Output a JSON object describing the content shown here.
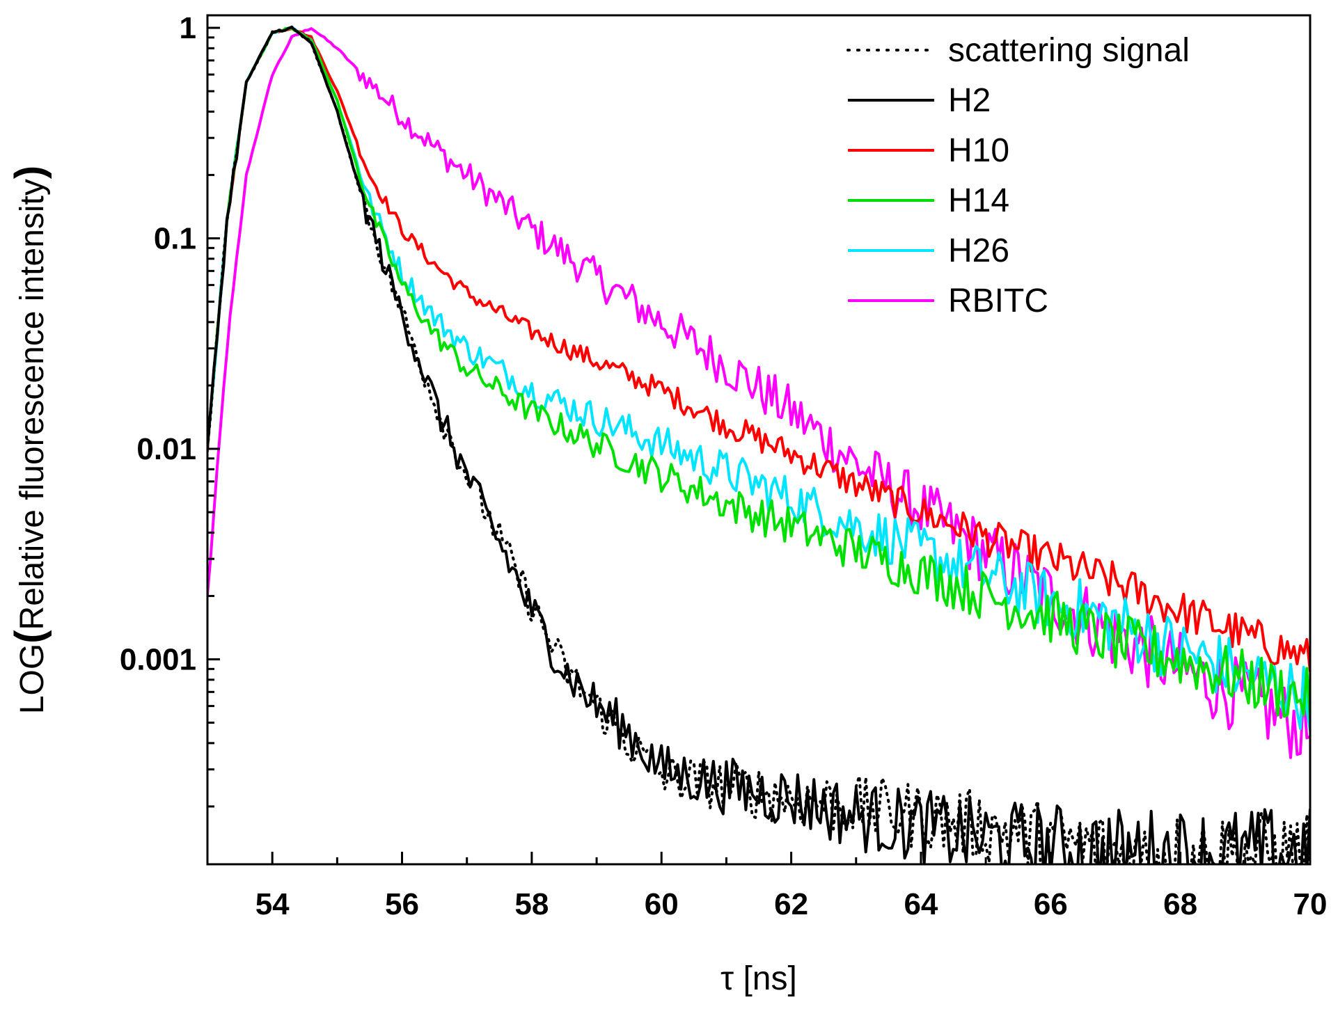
{
  "chart_data": {
    "type": "line",
    "title": "",
    "xlabel": "τ [ns]",
    "ylabel_prefix": "LOG",
    "ylabel_paren_open": "(",
    "ylabel_text": "Relative fluorescence intensity",
    "ylabel_paren_close": ")",
    "yscale": "log",
    "xlim": [
      53,
      70
    ],
    "ylim": [
      0.0001,
      1
    ],
    "xticks": [
      54,
      56,
      58,
      60,
      62,
      64,
      66,
      68,
      70
    ],
    "xtick_labels": [
      "54",
      "56",
      "58",
      "60",
      "62",
      "64",
      "66",
      "68",
      "70"
    ],
    "yticks": [
      1,
      0.1,
      0.01,
      0.001
    ],
    "ytick_labels": [
      "1",
      "0.1",
      "0.01",
      "0.001"
    ],
    "grid": false,
    "legend_position": "top-right",
    "series": [
      {
        "name": "scattering signal",
        "color": "#000000",
        "style": "dotted",
        "noise": 0.1,
        "x": [
          53,
          53.3,
          53.6,
          54.0,
          54.3,
          54.6,
          55.0,
          55.4,
          55.8,
          56.2,
          56.6,
          57.0,
          57.5,
          58.0,
          58.5,
          59.0,
          59.5,
          60.0,
          61.0,
          62.0,
          63.0,
          64.0,
          65.0,
          66.0,
          67.0,
          68.0,
          69.0,
          70.0
        ],
        "y": [
          0.01,
          0.12,
          0.55,
          0.95,
          1.0,
          0.85,
          0.4,
          0.15,
          0.065,
          0.03,
          0.014,
          0.0075,
          0.0038,
          0.0018,
          0.0009,
          0.0006,
          0.0004,
          0.00028,
          0.00025,
          0.00022,
          0.0002,
          0.00018,
          0.00016,
          0.00014,
          0.00012,
          0.00012,
          0.00012,
          0.00012
        ]
      },
      {
        "name": "H2",
        "color": "#000000",
        "style": "solid",
        "noise": 0.11,
        "x": [
          53,
          53.3,
          53.6,
          54.0,
          54.3,
          54.6,
          55.0,
          55.4,
          55.8,
          56.2,
          56.6,
          57.0,
          57.5,
          58.0,
          58.5,
          59.0,
          59.5,
          60.0,
          61.0,
          62.0,
          63.0,
          64.0,
          65.0,
          66.0,
          67.0,
          68.0,
          69.0,
          70.0
        ],
        "y": [
          0.01,
          0.12,
          0.55,
          0.95,
          1.0,
          0.85,
          0.4,
          0.15,
          0.065,
          0.03,
          0.014,
          0.0075,
          0.0036,
          0.0017,
          0.0009,
          0.0006,
          0.00045,
          0.0003,
          0.00025,
          0.00022,
          0.00018,
          0.00016,
          0.00014,
          0.00013,
          0.00012,
          0.00012,
          0.00012,
          0.00012
        ]
      },
      {
        "name": "H10",
        "color": "#ff0000",
        "style": "solid",
        "noise": 0.05,
        "x": [
          53,
          53.3,
          53.6,
          54.0,
          54.3,
          54.6,
          55.0,
          55.5,
          56.0,
          56.5,
          57.0,
          58.0,
          59.0,
          60.0,
          61.0,
          62.0,
          63.0,
          64.0,
          65.0,
          66.0,
          67.0,
          68.0,
          69.0,
          70.0
        ],
        "y": [
          0.01,
          0.12,
          0.55,
          0.95,
          1.0,
          0.9,
          0.5,
          0.2,
          0.11,
          0.075,
          0.055,
          0.036,
          0.026,
          0.019,
          0.013,
          0.0095,
          0.0068,
          0.005,
          0.0038,
          0.003,
          0.0023,
          0.0017,
          0.0013,
          0.001
        ]
      },
      {
        "name": "H14",
        "color": "#00e000",
        "style": "solid",
        "noise": 0.07,
        "x": [
          53,
          53.3,
          53.6,
          54.0,
          54.3,
          54.6,
          55.0,
          55.5,
          56.0,
          56.5,
          57.0,
          58.0,
          59.0,
          60.0,
          61.0,
          62.0,
          63.0,
          64.0,
          65.0,
          66.0,
          67.0,
          68.0,
          69.0,
          70.0
        ],
        "y": [
          0.01,
          0.12,
          0.55,
          0.95,
          1.0,
          0.88,
          0.45,
          0.14,
          0.06,
          0.035,
          0.024,
          0.015,
          0.0105,
          0.0075,
          0.0055,
          0.0043,
          0.0033,
          0.0026,
          0.002,
          0.0016,
          0.0012,
          0.001,
          0.0008,
          0.00065
        ]
      },
      {
        "name": "H26",
        "color": "#00e5ff",
        "style": "solid",
        "noise": 0.08,
        "x": [
          53,
          53.3,
          53.6,
          54.0,
          54.3,
          54.6,
          55.0,
          55.5,
          56.0,
          56.5,
          57.0,
          58.0,
          59.0,
          60.0,
          61.0,
          62.0,
          63.0,
          64.0,
          65.0,
          66.0,
          67.0,
          68.0,
          69.0,
          70.0
        ],
        "y": [
          0.01,
          0.12,
          0.55,
          0.95,
          1.0,
          0.88,
          0.45,
          0.15,
          0.068,
          0.042,
          0.03,
          0.019,
          0.014,
          0.0105,
          0.0078,
          0.0058,
          0.0043,
          0.0033,
          0.0025,
          0.0019,
          0.0015,
          0.0011,
          0.00085,
          0.00065
        ]
      },
      {
        "name": "RBITC",
        "color": "#ff00ff",
        "style": "solid",
        "noise": 0.09,
        "x": [
          53,
          53.3,
          53.6,
          54.0,
          54.3,
          54.6,
          55.0,
          55.5,
          56.0,
          56.5,
          57.0,
          57.5,
          58.0,
          59.0,
          60.0,
          61.0,
          62.0,
          63.0,
          64.0,
          65.0,
          66.0,
          67.0,
          68.0,
          69.0,
          70.0
        ],
        "y": [
          0.002,
          0.03,
          0.2,
          0.6,
          0.9,
          1.0,
          0.8,
          0.55,
          0.38,
          0.27,
          0.2,
          0.15,
          0.11,
          0.065,
          0.04,
          0.025,
          0.015,
          0.0085,
          0.0052,
          0.0032,
          0.002,
          0.0013,
          0.0009,
          0.00065,
          0.00045
        ]
      }
    ]
  }
}
